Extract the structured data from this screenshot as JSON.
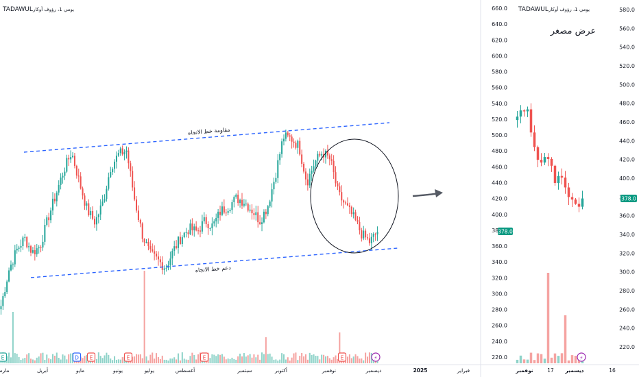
{
  "colors": {
    "up": "#26a69a",
    "down": "#ef5350",
    "vol_up": "#8fd3c9",
    "vol_down": "#f5a3a1",
    "trendline": "#2962ff",
    "price_badge": "#089981"
  },
  "left_panel": {
    "symbol": "TADAWUL",
    "interval": "يومي 1، رؤوف أوكار",
    "price_badge": "378.0",
    "resistance_label": "مقاومة خط الاتجاه",
    "support_label": "دعم خط الاتجاه",
    "x_labels": [
      "مارس",
      "أبريل",
      "مايو",
      "يونيو",
      "يوليو",
      "أغسطس",
      "سبتمبر",
      "أكتوبر",
      "نوفمبر",
      "ديسمبر",
      "2025",
      "فبراير"
    ],
    "event_badges": [
      "E",
      "D",
      "E",
      "E",
      "E",
      "E",
      "⚡"
    ]
  },
  "price_axis_left": {
    "ticks": [
      "660.0",
      "640.0",
      "620.0",
      "600.0",
      "580.0",
      "560.0",
      "540.0",
      "520.0",
      "500.0",
      "480.0",
      "460.0",
      "440.0",
      "420.0",
      "400.0",
      "380.0",
      "360.0",
      "340.0",
      "320.0",
      "300.0",
      "280.0",
      "260.0",
      "240.0",
      "220.0"
    ]
  },
  "right_panel": {
    "symbol": "TADAWUL",
    "interval": "يومي 1، رؤوف أوكار",
    "title": "عرض مصغر",
    "price_badge": "378.0",
    "x_labels": [
      "نوفمبر",
      "17",
      "ديسمبر",
      "16"
    ],
    "event_badges": [
      "⚡"
    ]
  },
  "price_axis_right": {
    "ticks": [
      "580.0",
      "560.0",
      "540.0",
      "520.0",
      "500.0",
      "480.0",
      "460.0",
      "440.0",
      "420.0",
      "400.0",
      "380.0",
      "360.0",
      "340.0",
      "320.0",
      "300.0",
      "280.0",
      "260.0",
      "240.0",
      "220.0"
    ]
  },
  "chart_data": [
    {
      "type": "candlestick",
      "title": "",
      "y_unit": "SAR",
      "ylim": [
        220,
        660
      ],
      "x": [
        "مارس",
        "أبريل",
        "مايو",
        "يونيو",
        "يوليو",
        "أغسطس",
        "سبتمبر",
        "أكتوبر",
        "نوفمبر",
        "ديسمبر"
      ],
      "close_path": [
        285,
        330,
        355,
        370,
        352,
        360,
        395,
        425,
        455,
        478,
        440,
        405,
        390,
        415,
        460,
        475,
        480,
        420,
        375,
        350,
        342,
        333,
        355,
        372,
        382,
        378,
        392,
        385,
        404,
        410,
        420,
        416,
        405,
        392,
        410,
        450,
        497,
        495,
        485,
        440,
        465,
        478,
        468,
        425,
        410,
        395,
        375,
        365,
        378
      ],
      "trendlines": [
        {
          "name": "مقاومة خط الاتجاه",
          "from": [
            0.04,
            477
          ],
          "to": [
            0.98,
            518
          ]
        },
        {
          "name": "دعم خط الاتجاه",
          "from": [
            0.07,
            320
          ],
          "to": [
            0.98,
            364
          ]
        }
      ],
      "last_price": 378.0
    },
    {
      "type": "candlestick",
      "title": "عرض مصغر",
      "ylim": [
        200,
        590
      ],
      "x": [
        "نوفمبر",
        "17",
        "ديسمبر",
        "16"
      ],
      "close_path": [
        470,
        485,
        478,
        455,
        430,
        420,
        425,
        412,
        402,
        405,
        398,
        385,
        375,
        365,
        378
      ],
      "last_price": 378.0
    }
  ]
}
